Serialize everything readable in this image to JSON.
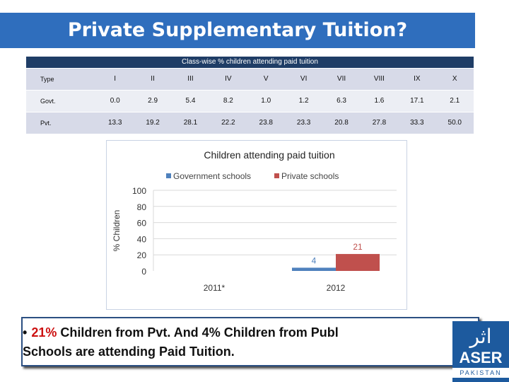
{
  "slide": {
    "title": "Private Supplementary Tuition?",
    "bottom_bullet": "•",
    "bottom_pct": "21%",
    "bottom_text": " Children from Pvt. And 4% Children from Publ",
    "bottom_text_line2": "Schools are attending Paid Tuition."
  },
  "table": {
    "caption": "Class-wise % children attending paid tuition",
    "header_label": "Type",
    "columns": [
      "I",
      "II",
      "III",
      "IV",
      "V",
      "VI",
      "VII",
      "VIII",
      "IX",
      "X"
    ],
    "rows": [
      {
        "label": "Govt.",
        "values": [
          "0.0",
          "2.9",
          "5.4",
          "8.2",
          "1.0",
          "1.2",
          "6.3",
          "1.6",
          "17.1",
          "2.1"
        ]
      },
      {
        "label": "Pvt.",
        "values": [
          "13.3",
          "19.2",
          "28.1",
          "22.2",
          "23.8",
          "23.3",
          "20.8",
          "27.8",
          "33.3",
          "50.0"
        ]
      }
    ]
  },
  "chart_data": {
    "type": "bar",
    "title": "Children attending paid tuition",
    "ylabel": "% Children",
    "xlabel": "",
    "ylim": [
      0,
      100
    ],
    "yticks": [
      0,
      20,
      40,
      60,
      80,
      100
    ],
    "categories": [
      "2011*",
      "2012"
    ],
    "series": [
      {
        "name": "Government schools",
        "color": "#4f81bd",
        "values": [
          null,
          4
        ],
        "data_labels": [
          "",
          "4"
        ]
      },
      {
        "name": "Private schools",
        "color": "#c0504d",
        "values": [
          null,
          21
        ],
        "data_labels": [
          "",
          "21"
        ]
      }
    ],
    "legend": "top",
    "grid": true
  },
  "logo": {
    "urdu": "اثر",
    "name": "ASER",
    "country": "PAKISTAN"
  }
}
